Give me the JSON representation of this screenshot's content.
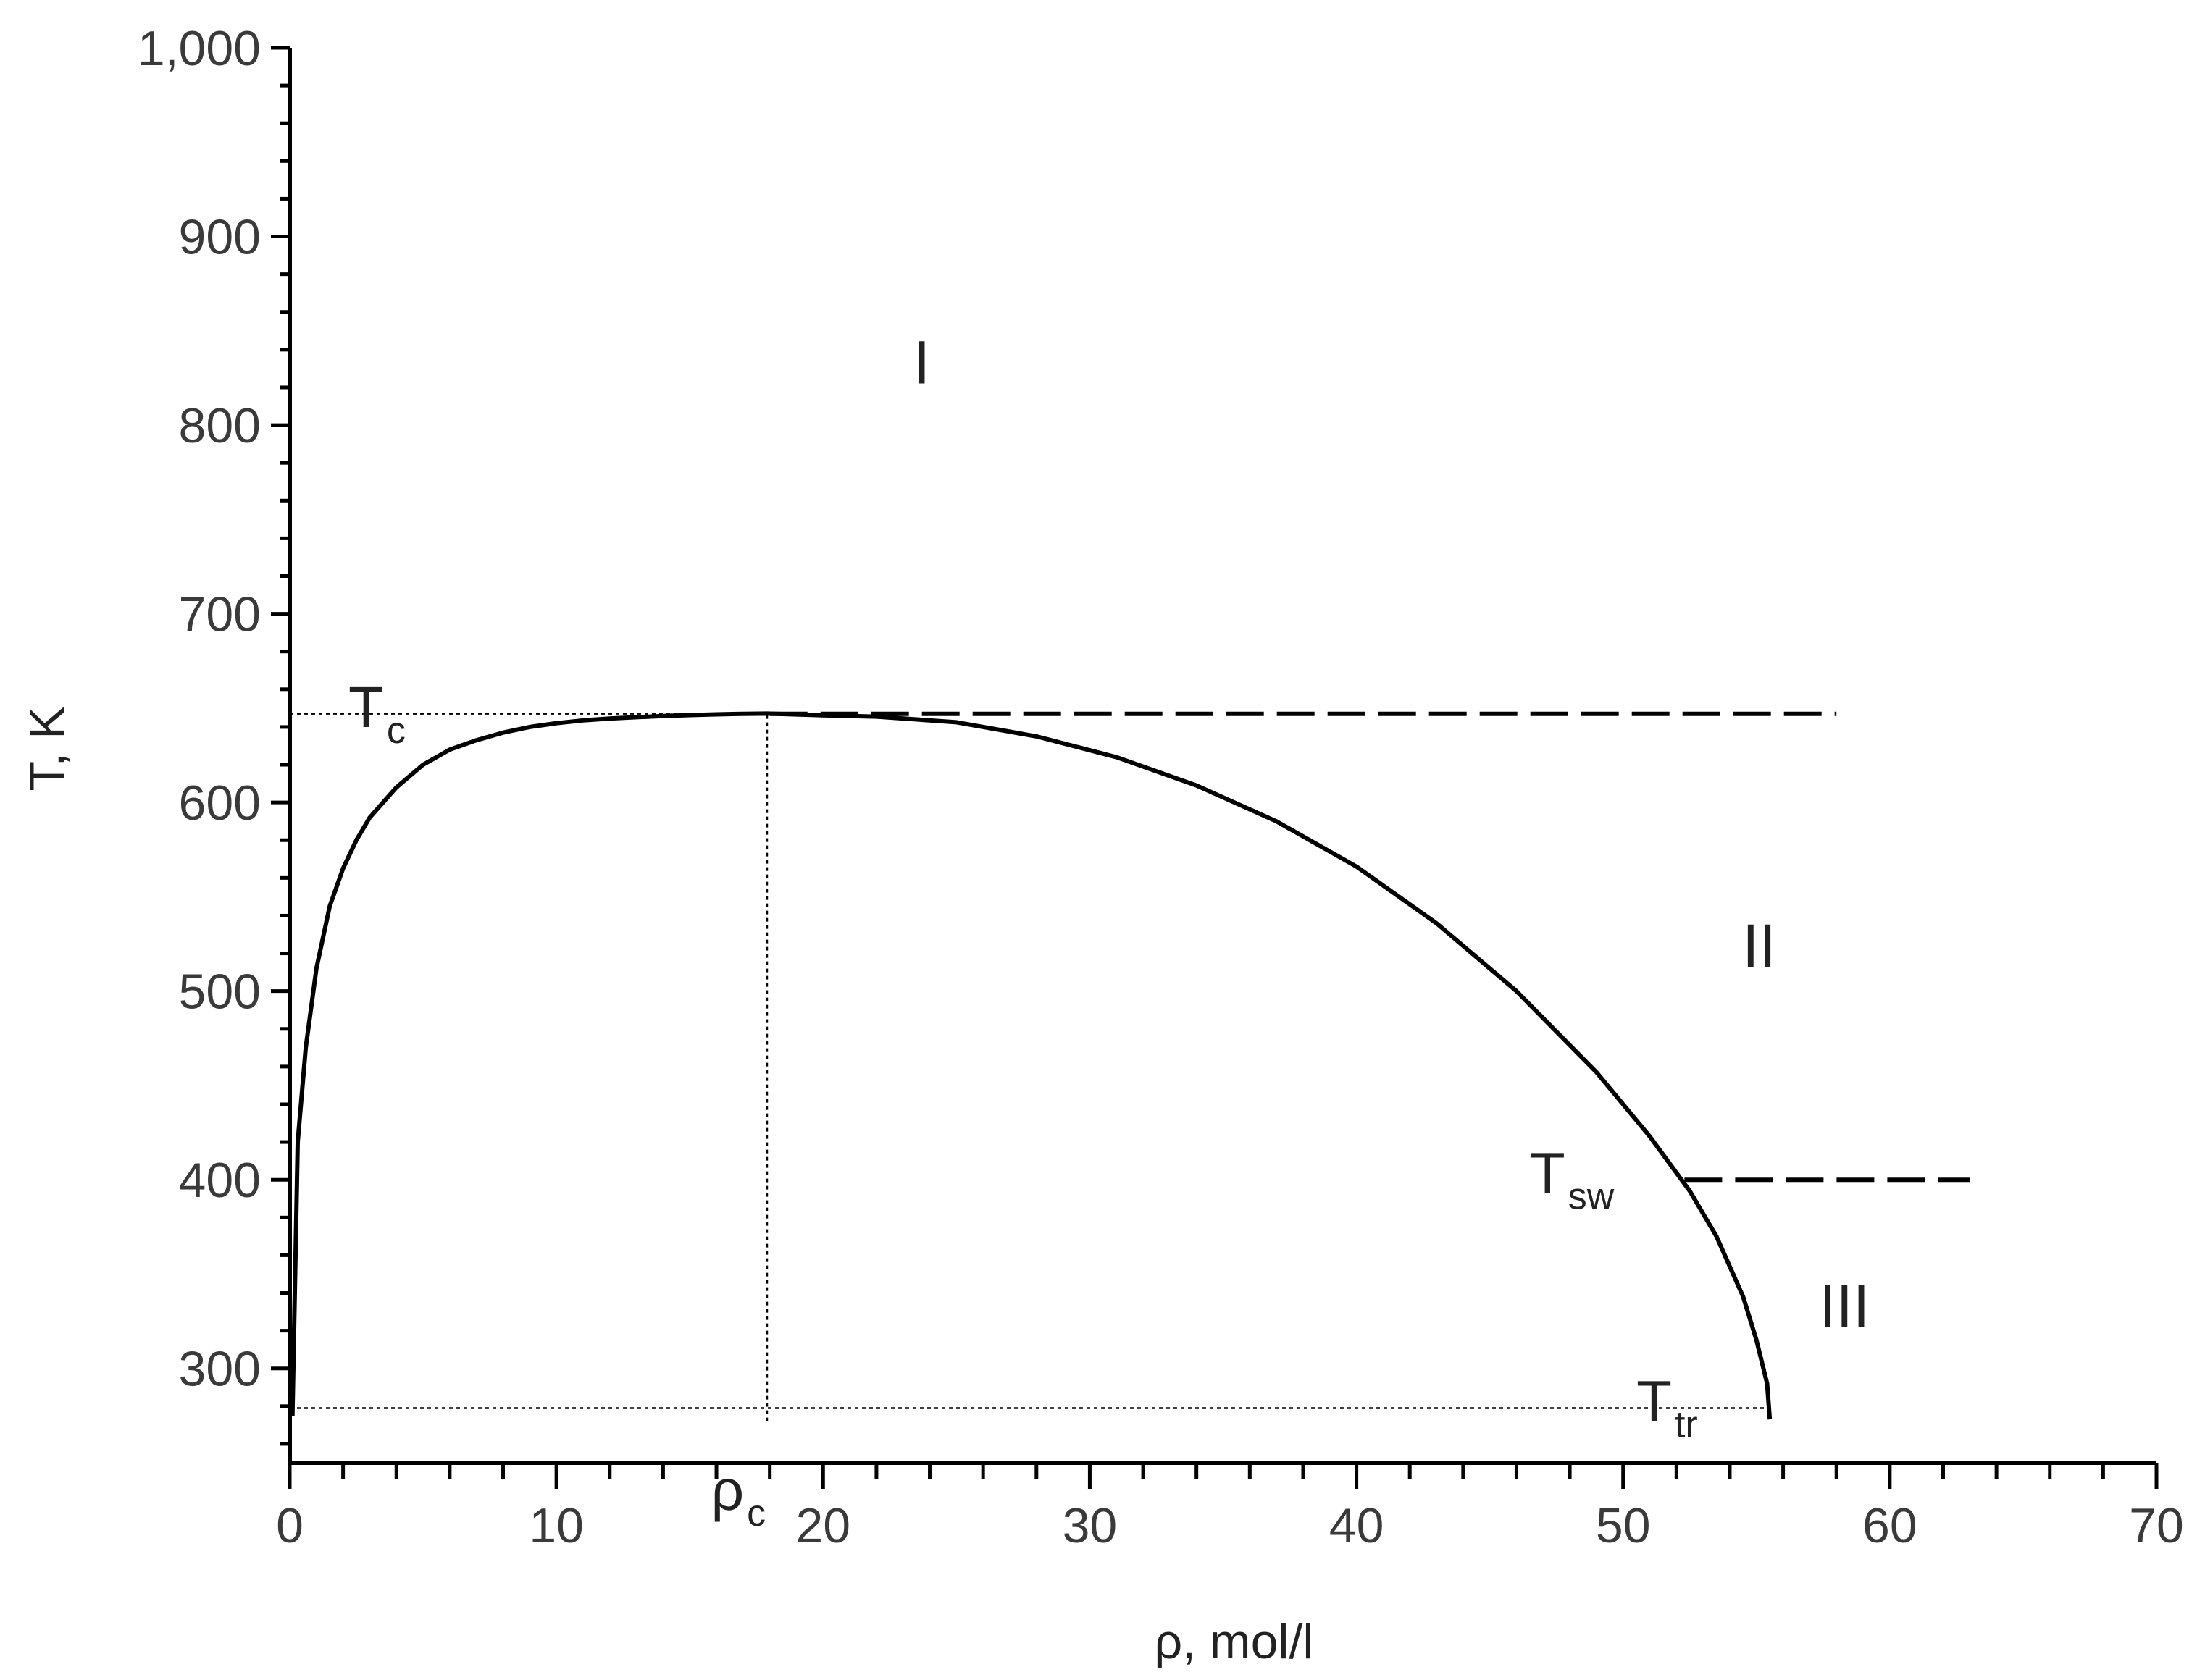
{
  "chart_data": {
    "type": "line",
    "title": "",
    "xlabel": "ρ, mol/l",
    "ylabel": "T, K",
    "xlim": [
      0,
      70
    ],
    "ylim": [
      250,
      1000
    ],
    "x_ticks": [
      0,
      10,
      20,
      30,
      40,
      50,
      60,
      70
    ],
    "x_tick_labels": [
      "0",
      "10",
      "20",
      "30",
      "40",
      "50",
      "60",
      "70"
    ],
    "y_ticks": [
      300,
      400,
      500,
      600,
      700,
      800,
      900,
      1000
    ],
    "y_tick_labels": [
      "300",
      "400",
      "500",
      "600",
      "700",
      "800",
      "900",
      "1,000"
    ],
    "grid": false,
    "series": [
      {
        "style": "solid",
        "x": [
          0.1,
          0.3,
          0.6,
          1.0,
          1.5,
          2.0,
          2.5,
          3.0,
          4.0,
          5.0,
          6.0,
          7.0,
          8.0,
          9.0,
          10.0,
          11.0,
          12.0,
          13.0,
          14.0,
          15.0,
          16.0,
          17.0,
          17.9,
          20.0,
          22.0,
          25.0,
          28.0,
          31.0,
          34.0,
          37.0,
          40.0,
          43.0,
          46.0,
          49.0,
          51.0,
          52.5,
          53.5,
          54.5,
          55.0,
          55.4,
          55.5
        ],
        "y": [
          275,
          420,
          470,
          512,
          545,
          565,
          580,
          592,
          608,
          620,
          628,
          633,
          637,
          640,
          642,
          643.5,
          644.5,
          645.2,
          645.8,
          646.3,
          646.7,
          647,
          647.1,
          646.2,
          645.5,
          642.5,
          635,
          624,
          609,
          590,
          566,
          536,
          500,
          457,
          423,
          394,
          370,
          338,
          315,
          292,
          273
        ]
      },
      {
        "style": "dashed",
        "x": [
          18,
          58
        ],
        "y": [
          647,
          647
        ]
      },
      {
        "style": "dashed",
        "x": [
          52.3,
          63
        ],
        "y": [
          400,
          400
        ]
      }
    ],
    "reference_lines": [
      {
        "style": "dotted",
        "x": [
          0,
          17.9
        ],
        "y": [
          647,
          647
        ]
      },
      {
        "style": "dotted",
        "x": [
          17.9,
          17.9
        ],
        "y": [
          272,
          647
        ]
      },
      {
        "style": "dotted",
        "x": [
          0,
          55.4
        ],
        "y": [
          279,
          279
        ]
      }
    ],
    "annotations": [
      {
        "label": "T",
        "sub": "c",
        "x": 2.2,
        "y": 640
      },
      {
        "label": "ρ",
        "sub": "c",
        "x": 15.8,
        "y": 225
      },
      {
        "label": "T",
        "sub": "sw",
        "x": 46.5,
        "y": 393
      },
      {
        "label": "T",
        "sub": "tr",
        "x": 50.5,
        "y": 272
      },
      {
        "label": "I",
        "sub": "",
        "x": 23.7,
        "y": 822
      },
      {
        "label": "II",
        "sub": "",
        "x": 55.1,
        "y": 513
      },
      {
        "label": "III",
        "sub": "",
        "x": 58.3,
        "y": 322
      }
    ]
  }
}
